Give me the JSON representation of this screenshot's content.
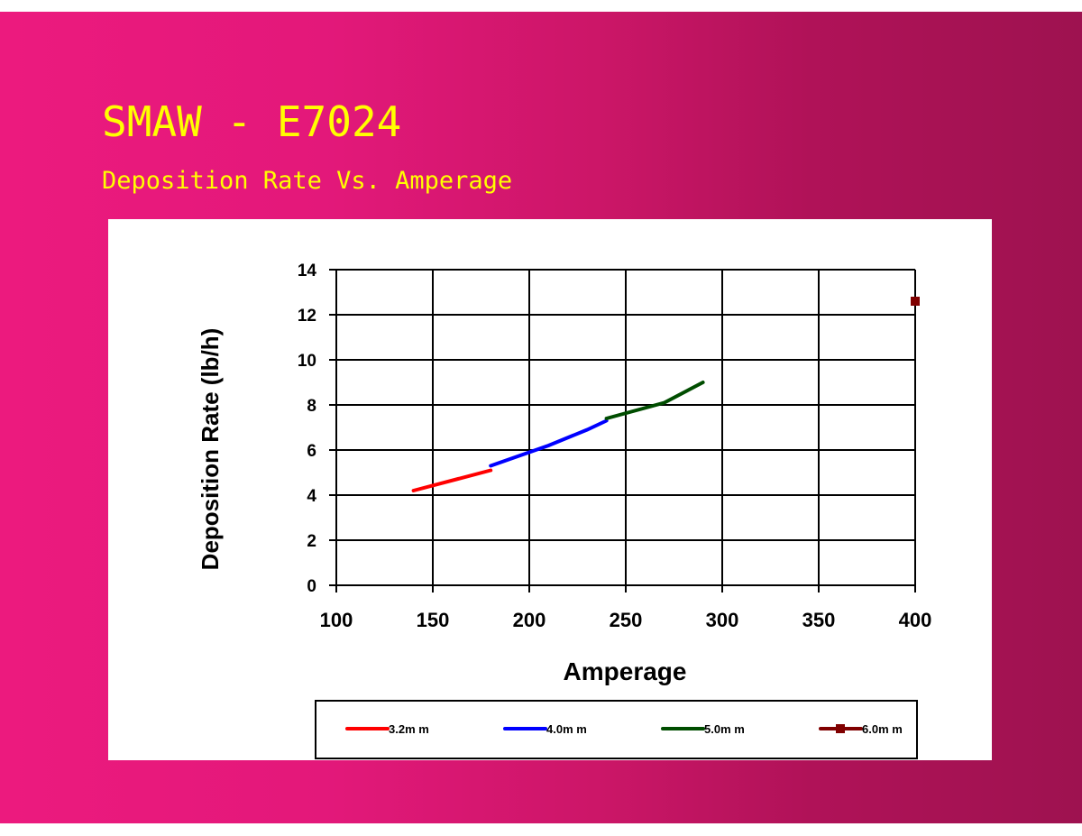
{
  "slide": {
    "title": "SMAW - E7024",
    "subtitle": "Deposition Rate Vs. Amperage"
  },
  "chart_data": {
    "type": "line",
    "title": "Deposition Rate Vs. Amperage",
    "xlabel": "Amperage",
    "ylabel": "Deposition Rate (lb/h)",
    "xlim": [
      100,
      400
    ],
    "ylim": [
      0,
      14
    ],
    "xticks": [
      100,
      150,
      200,
      250,
      300,
      350,
      400
    ],
    "yticks": [
      0,
      2,
      4,
      6,
      8,
      10,
      12,
      14
    ],
    "grid": true,
    "legend_position": "bottom",
    "series": [
      {
        "name": "3.2m m",
        "color": "#ff0000",
        "marker": "none",
        "points": [
          [
            140,
            4.2
          ],
          [
            180,
            5.1
          ]
        ]
      },
      {
        "name": "4.0m m",
        "color": "#0000ff",
        "marker": "none",
        "points": [
          [
            180,
            5.3
          ],
          [
            200,
            5.9
          ],
          [
            210,
            6.2
          ],
          [
            230,
            6.9
          ],
          [
            240,
            7.3
          ]
        ]
      },
      {
        "name": "5.0m m",
        "color": "#004d00",
        "marker": "none",
        "points": [
          [
            240,
            7.4
          ],
          [
            270,
            8.1
          ],
          [
            290,
            9.0
          ]
        ]
      },
      {
        "name": "6.0m m",
        "color": "#800000",
        "marker": "square",
        "points": [
          [
            400,
            12.6
          ]
        ]
      }
    ]
  }
}
